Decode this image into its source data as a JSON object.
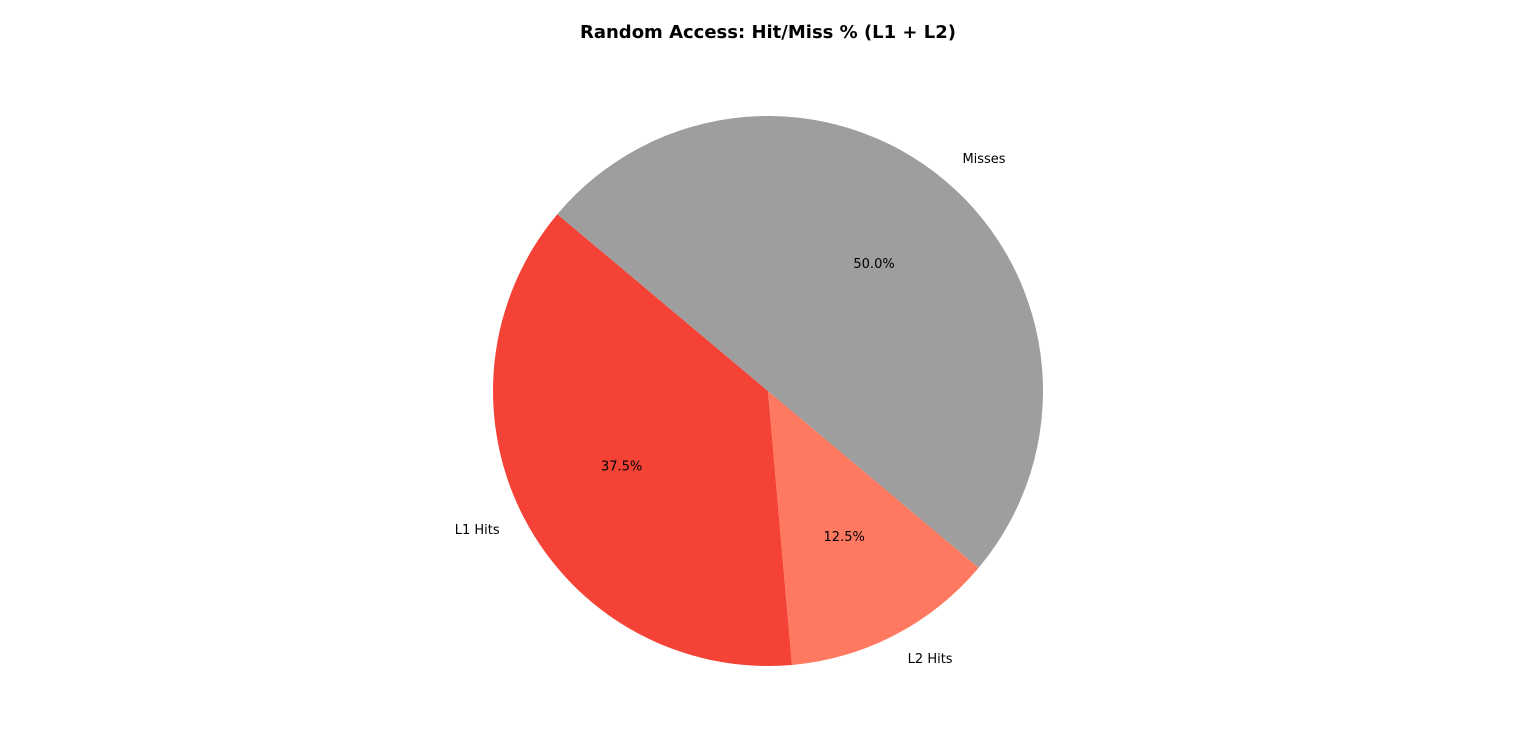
{
  "chart_data": {
    "type": "pie",
    "title": "Random Access: Hit/Miss % (L1 + L2)",
    "labels": [
      "L1 Hits",
      "L2 Hits",
      "Misses"
    ],
    "values": [
      37.5,
      12.5,
      50.0
    ],
    "value_labels": [
      "37.5%",
      "12.5%",
      "50.0%"
    ],
    "colors": [
      "#f44336",
      "#ff7961",
      "#9e9e9e"
    ],
    "start_angle_deg": 140,
    "direction": "counterclockwise",
    "legend": "none"
  }
}
